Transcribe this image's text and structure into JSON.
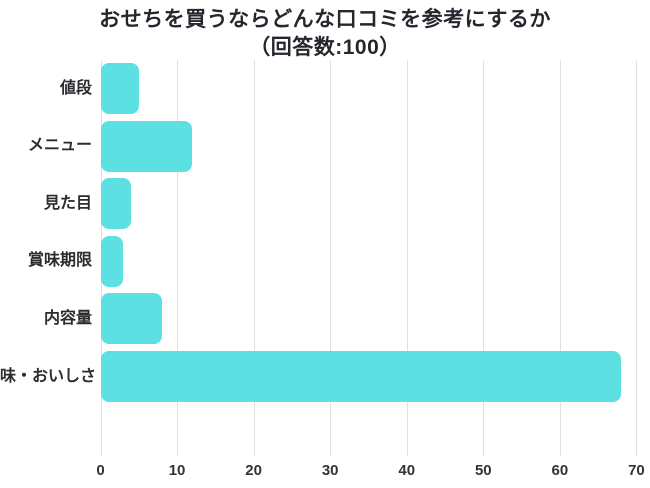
{
  "title": {
    "line1": "おせちを買うならどんな口コミを参考にするか",
    "line2": "（回答数:100）",
    "color": "#26262e"
  },
  "chart_data": {
    "type": "bar",
    "orientation": "horizontal",
    "title": "おせちを買うならどんな口コミを参考にするか（回答数:100）",
    "response_count_label": "回答数:100",
    "categories": [
      "値段",
      "メニュー",
      "見た目",
      "賞味期限",
      "内容量",
      "味・おいしさ"
    ],
    "values": [
      5,
      12,
      4,
      3,
      8,
      68
    ],
    "xticks": [
      0,
      10,
      20,
      30,
      40,
      50,
      60,
      70
    ],
    "xlim": [
      0,
      70.4
    ],
    "grid": true,
    "legend": false,
    "bar_color": "#5ce0e2",
    "grid_color": "#e0e0e0",
    "tick_label_color": "#333338",
    "category_label_color": "#2b2b30"
  }
}
